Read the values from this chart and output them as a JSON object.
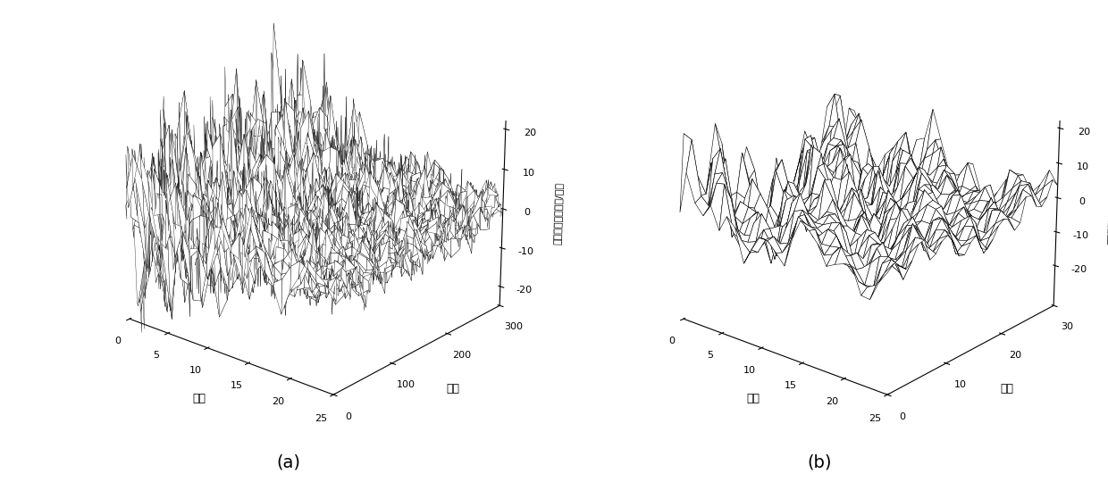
{
  "title_a": "(a)",
  "title_b": "(b)",
  "ylabel_a": "帧数",
  "ylabel_b": "帧数",
  "xlabel": "维数",
  "zlabel": "梅尔频率倒谱系数/梅尔",
  "n_dims_a": 25,
  "n_frames_a": 300,
  "n_dims_b": 25,
  "n_frames_b": 30,
  "zlim_a": [
    -25,
    22
  ],
  "zlim_b": [
    -32,
    22
  ],
  "zticks_a": [
    -20,
    -10,
    0,
    10,
    20
  ],
  "zticks_b": [
    -20,
    -10,
    0,
    10,
    20
  ],
  "background_color": "#ffffff",
  "edge_color": "#000000",
  "face_color": "#ffffff",
  "seed_a": 42,
  "seed_b": 99,
  "elev": 22,
  "azim_a": -50,
  "azim_b": -50
}
